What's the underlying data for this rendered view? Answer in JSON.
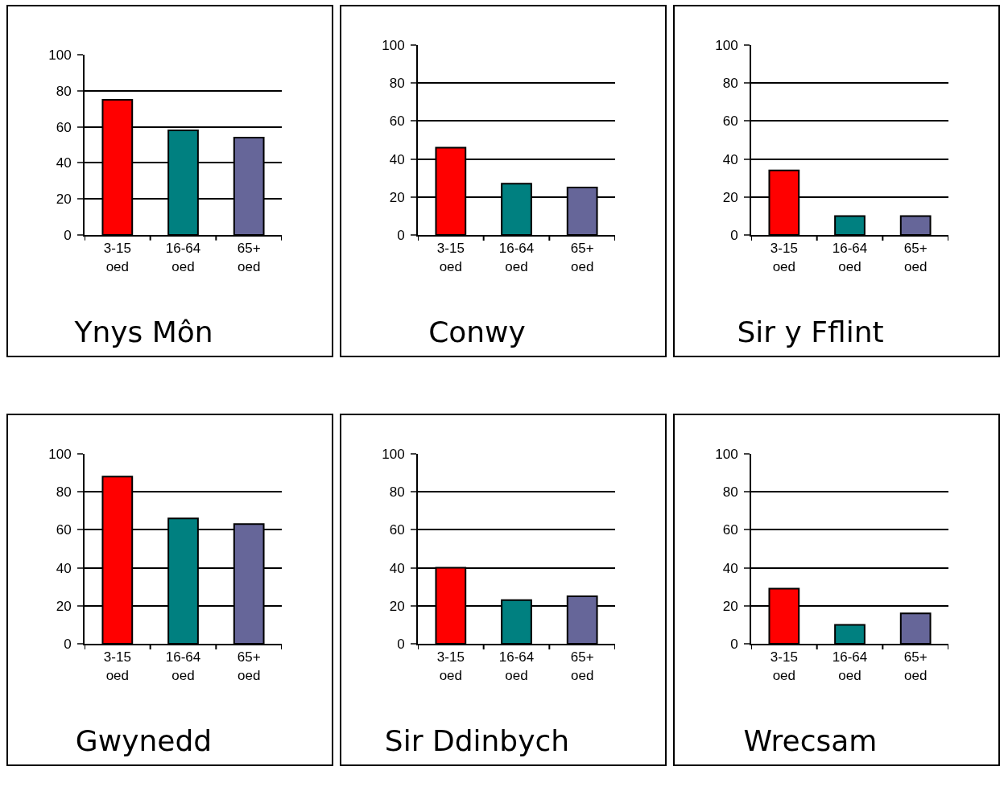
{
  "chart_data": [
    {
      "type": "bar",
      "title": "Ynys Môn",
      "categories": [
        "3-15 oed",
        "16-64 oed",
        "65+ oed"
      ],
      "values": [
        75,
        58,
        54
      ],
      "colors": [
        "#ff0000",
        "#008080",
        "#666699"
      ],
      "ylim": [
        0,
        100
      ],
      "yticks": [
        0,
        20,
        40,
        60,
        80,
        100
      ],
      "grid": "y"
    },
    {
      "type": "bar",
      "title": "Conwy",
      "categories": [
        "3-15 oed",
        "16-64 oed",
        "65+ oed"
      ],
      "values": [
        46,
        27,
        25
      ],
      "colors": [
        "#ff0000",
        "#008080",
        "#666699"
      ],
      "ylim": [
        0,
        100
      ],
      "yticks": [
        0,
        20,
        40,
        60,
        80,
        100
      ],
      "grid": "y"
    },
    {
      "type": "bar",
      "title": "Sir y Fflint",
      "categories": [
        "3-15 oed",
        "16-64 oed",
        "65+ oed"
      ],
      "values": [
        34,
        10,
        10
      ],
      "colors": [
        "#ff0000",
        "#008080",
        "#666699"
      ],
      "ylim": [
        0,
        100
      ],
      "yticks": [
        0,
        20,
        40,
        60,
        80,
        100
      ],
      "grid": "y"
    },
    {
      "type": "bar",
      "title": "Gwynedd",
      "categories": [
        "3-15 oed",
        "16-64 oed",
        "65+ oed"
      ],
      "values": [
        88,
        66,
        63
      ],
      "colors": [
        "#ff0000",
        "#008080",
        "#666699"
      ],
      "ylim": [
        0,
        100
      ],
      "yticks": [
        0,
        20,
        40,
        60,
        80,
        100
      ],
      "grid": "y"
    },
    {
      "type": "bar",
      "title": "Sir Ddinbych",
      "categories": [
        "3-15 oed",
        "16-64 oed",
        "65+ oed"
      ],
      "values": [
        40,
        23,
        25
      ],
      "colors": [
        "#ff0000",
        "#008080",
        "#666699"
      ],
      "ylim": [
        0,
        100
      ],
      "yticks": [
        0,
        20,
        40,
        60,
        80,
        100
      ],
      "grid": "y"
    },
    {
      "type": "bar",
      "title": "Wrecsam",
      "categories": [
        "3-15 oed",
        "16-64 oed",
        "65+ oed"
      ],
      "values": [
        29,
        10,
        16
      ],
      "colors": [
        "#ff0000",
        "#008080",
        "#666699"
      ],
      "ylim": [
        0,
        100
      ],
      "yticks": [
        0,
        20,
        40,
        60,
        80,
        100
      ],
      "grid": "y"
    }
  ]
}
